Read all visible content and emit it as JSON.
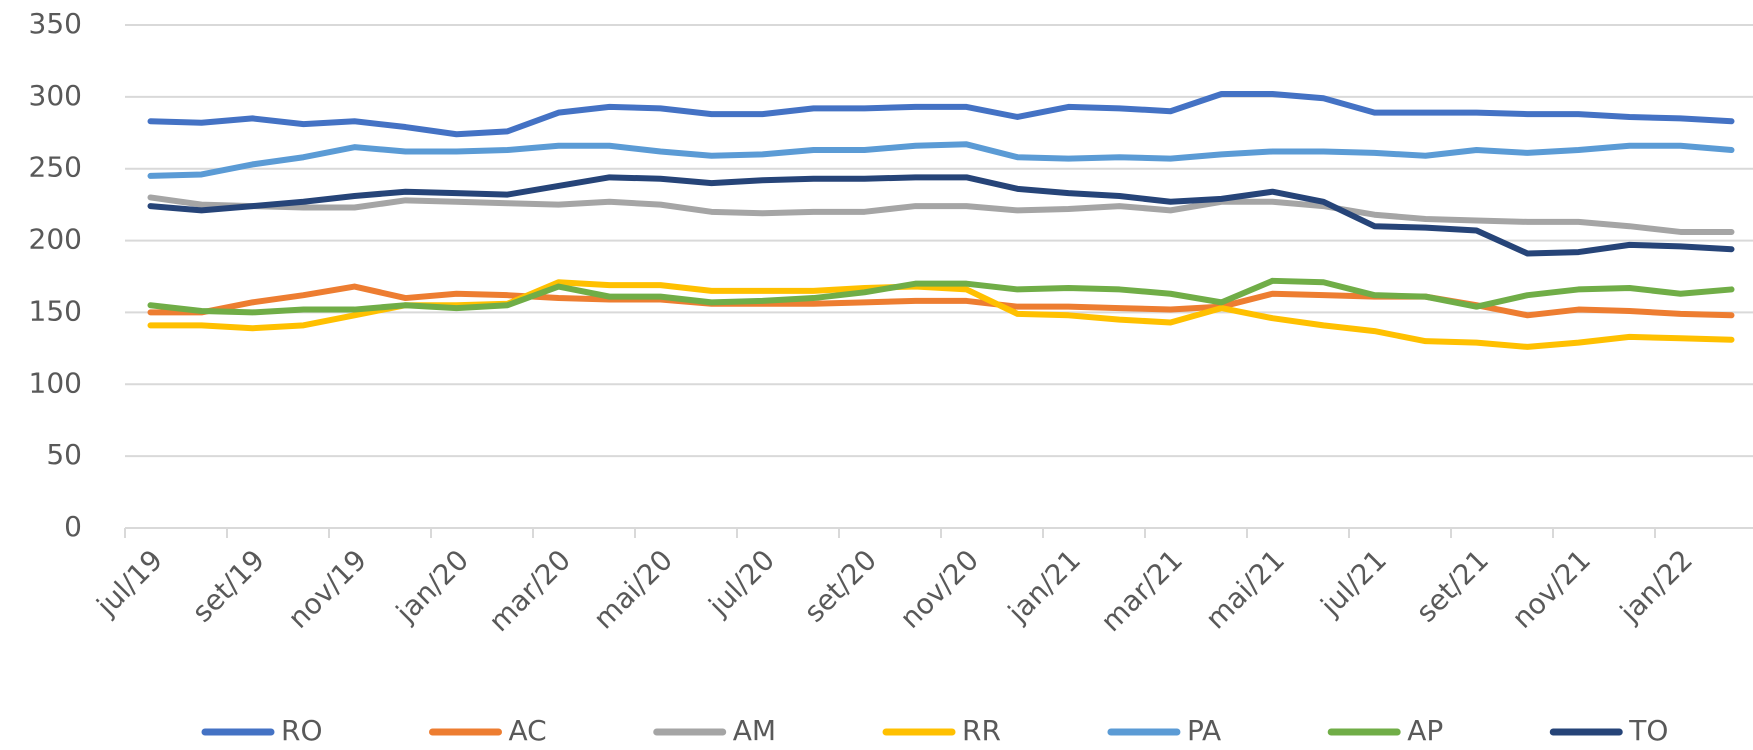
{
  "chart_data": {
    "type": "line",
    "categories": [
      "jul/19",
      null,
      "set/19",
      null,
      "nov/19",
      null,
      "jan/20",
      null,
      "mar/20",
      null,
      "mai/20",
      null,
      "jul/20",
      null,
      "set/20",
      null,
      "nov/20",
      null,
      "jan/21",
      null,
      "mar/21",
      null,
      "mai/21",
      null,
      "jul/21",
      null,
      "set/21",
      null,
      "nov/21",
      null,
      "jan/22",
      null
    ],
    "series": [
      {
        "name": "RO",
        "color": "#4472c4",
        "values": [
          283,
          282,
          285,
          281,
          283,
          279,
          274,
          276,
          289,
          293,
          292,
          288,
          288,
          292,
          292,
          293,
          293,
          286,
          293,
          292,
          290,
          302,
          302,
          299,
          289,
          289,
          289,
          288,
          288,
          286,
          285,
          283
        ]
      },
      {
        "name": "AC",
        "color": "#ed7d31",
        "values": [
          150,
          150,
          157,
          162,
          168,
          160,
          163,
          162,
          160,
          159,
          159,
          156,
          156,
          156,
          157,
          158,
          158,
          154,
          154,
          153,
          152,
          154,
          163,
          162,
          161,
          161,
          155,
          148,
          152,
          151,
          149,
          148
        ]
      },
      {
        "name": "AM",
        "color": "#a5a5a5",
        "values": [
          230,
          225,
          224,
          223,
          223,
          228,
          227,
          226,
          225,
          227,
          225,
          220,
          219,
          220,
          220,
          224,
          224,
          221,
          222,
          224,
          221,
          227,
          227,
          224,
          218,
          215,
          214,
          213,
          213,
          210,
          206,
          206
        ]
      },
      {
        "name": "RR",
        "color": "#ffc000",
        "values": [
          141,
          141,
          139,
          141,
          148,
          155,
          155,
          156,
          171,
          169,
          169,
          165,
          165,
          165,
          167,
          168,
          166,
          149,
          148,
          145,
          143,
          153,
          146,
          141,
          137,
          130,
          129,
          126,
          129,
          133,
          132,
          131
        ]
      },
      {
        "name": "PA",
        "color": "#5b9bd5",
        "values": [
          245,
          246,
          253,
          258,
          265,
          262,
          262,
          263,
          266,
          266,
          262,
          259,
          260,
          263,
          263,
          266,
          267,
          258,
          257,
          258,
          257,
          260,
          262,
          262,
          261,
          259,
          263,
          261,
          263,
          266,
          266,
          263
        ]
      },
      {
        "name": "AP",
        "color": "#70ad47",
        "values": [
          155,
          151,
          150,
          152,
          152,
          155,
          153,
          155,
          168,
          161,
          161,
          157,
          158,
          160,
          164,
          170,
          170,
          166,
          167,
          166,
          163,
          157,
          172,
          171,
          162,
          161,
          154,
          162,
          166,
          167,
          163,
          166
        ]
      },
      {
        "name": "TO",
        "color": "#264478",
        "values": [
          224,
          221,
          224,
          227,
          231,
          234,
          233,
          232,
          238,
          244,
          243,
          240,
          242,
          243,
          243,
          244,
          244,
          236,
          233,
          231,
          227,
          229,
          234,
          227,
          210,
          209,
          207,
          191,
          192,
          197,
          196,
          194
        ]
      }
    ],
    "ylim": [
      0,
      350
    ],
    "yticks": [
      0,
      50,
      100,
      150,
      200,
      250,
      300,
      350
    ],
    "grid": true,
    "legend": "bottom"
  }
}
